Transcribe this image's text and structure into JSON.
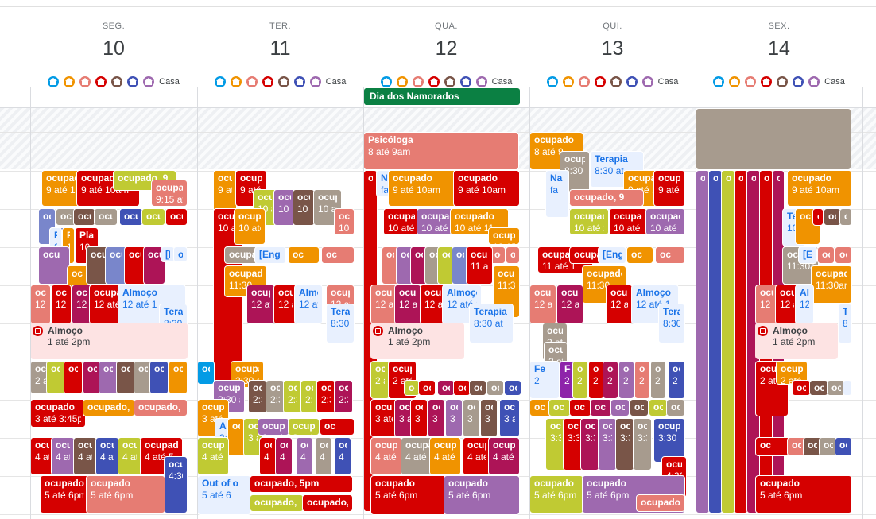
{
  "colors": {
    "lavender": "#7986cb",
    "sage": "#33b679",
    "grape": "#8e24aa",
    "flamingo": "#e67c73",
    "banana": "#f6bf26",
    "tangerine": "#f4511e",
    "peacock": "#039be5",
    "graphite": "#616161",
    "blueberry": "#3f51b5",
    "basil": "#0b8043",
    "tomato": "#d50000",
    "red": "#d50000",
    "orange": "#f09300",
    "salmon": "#e67c73",
    "purple": "#9e69af",
    "brown": "#795548",
    "olive": "#c0ca33",
    "indigo": "#3f51b5",
    "taupe": "#a79b8e",
    "magenta": "#ad1457",
    "pink": "#e67c73"
  },
  "home_icon_colors": [
    "#039be5",
    "#f09300",
    "#e67c73",
    "#d50000",
    "#795548",
    "#3f51b5",
    "#9e69af"
  ],
  "days": [
    {
      "name": "SEG.",
      "num": "10",
      "casa": "Casa"
    },
    {
      "name": "TER.",
      "num": "11",
      "casa": "Casa"
    },
    {
      "name": "QUA.",
      "num": "12",
      "casa": "Casa"
    },
    {
      "name": "QUI.",
      "num": "13",
      "casa": "Casa"
    },
    {
      "name": "SEX.",
      "num": "14",
      "casa": "Casa"
    }
  ],
  "allday": {
    "title": "Dia dos Namorados"
  },
  "lunch": {
    "title": "Almoço",
    "time": "1 até 2pm"
  },
  "events": {
    "psicologa": {
      "title": "Psicóloga",
      "time": "8 até 9am"
    },
    "ocupado8": {
      "title": "ocupado",
      "time": "8 até 9"
    },
    "terapia": {
      "title": "Terapia",
      "time": "8:30 at"
    },
    "oc830": {
      "title": "ocupado",
      "time": "8:30 at"
    },
    "oc9_10": {
      "title": "ocupado",
      "time": "9 até 10am"
    },
    "oc9_1": {
      "title": "ocupado",
      "time": "9 até 1"
    },
    "oc9s": {
      "title": "ocupado, 9",
      "time": ""
    },
    "oc915": {
      "title": "ocupad",
      "time": "9:15 at"
    },
    "oc10": {
      "title": "ocupado",
      "time": "10 até 11"
    },
    "oc10a": {
      "title": "ocupado",
      "time": "10 até 1"
    },
    "oc1015": {
      "title": "ocupado",
      "time": "10:15"
    },
    "oc9c": {
      "title": "ocupado, 9",
      "time": ""
    },
    "oc11": {
      "title": "ocupado",
      "time": "11 até 1"
    },
    "oc1130": {
      "title": "ocupado",
      "time": "11:30am"
    },
    "oc1130b": {
      "title": "ocupado",
      "time": "11:30"
    },
    "oc12": {
      "title": "ocupado",
      "time": "12 até 1"
    },
    "alm12": {
      "title": "Almoço",
      "time": "12 até 1"
    },
    "oc2": {
      "title": "ocupado",
      "time": "2 até 3"
    },
    "oc230": {
      "title": "ocupado",
      "time": "2:30 até"
    },
    "oc3": {
      "title": "ocupado",
      "time": "3 até 3:45pm"
    },
    "oc3s": {
      "title": "ocupado, 3",
      "time": ""
    },
    "oc330": {
      "title": "ocupado",
      "time": "3:30 at"
    },
    "oc4": {
      "title": "ocupado",
      "time": "4 até 5"
    },
    "oc430": {
      "title": "ocupad",
      "time": "4:30"
    },
    "oc5": {
      "title": "ocupado",
      "time": "5 até 6pm"
    },
    "oc5pm": {
      "title": "ocupado, 5pm",
      "time": ""
    },
    "oc5s": {
      "title": "ocupado, 5",
      "time": ""
    },
    "out": {
      "title": "Out of o",
      "time": "5 até 6"
    },
    "engine": {
      "title": "[Engine",
      "time": ""
    },
    "nao": {
      "title": "Na",
      "time": "fa"
    },
    "fe": {
      "title": "Fe",
      "time": "2"
    },
    "ap": {
      "title": "Ap",
      "time": "3:"
    },
    "te": {
      "title": "Te",
      "time": "10"
    },
    "pla": {
      "title": "Pla",
      "time": "10"
    },
    "ocu": {
      "title": "ocu",
      "time": ""
    },
    "ocp": {
      "title": "oc",
      "time": ""
    },
    "oc1130c": {
      "title": "ocupado",
      "time": "11:30"
    }
  }
}
